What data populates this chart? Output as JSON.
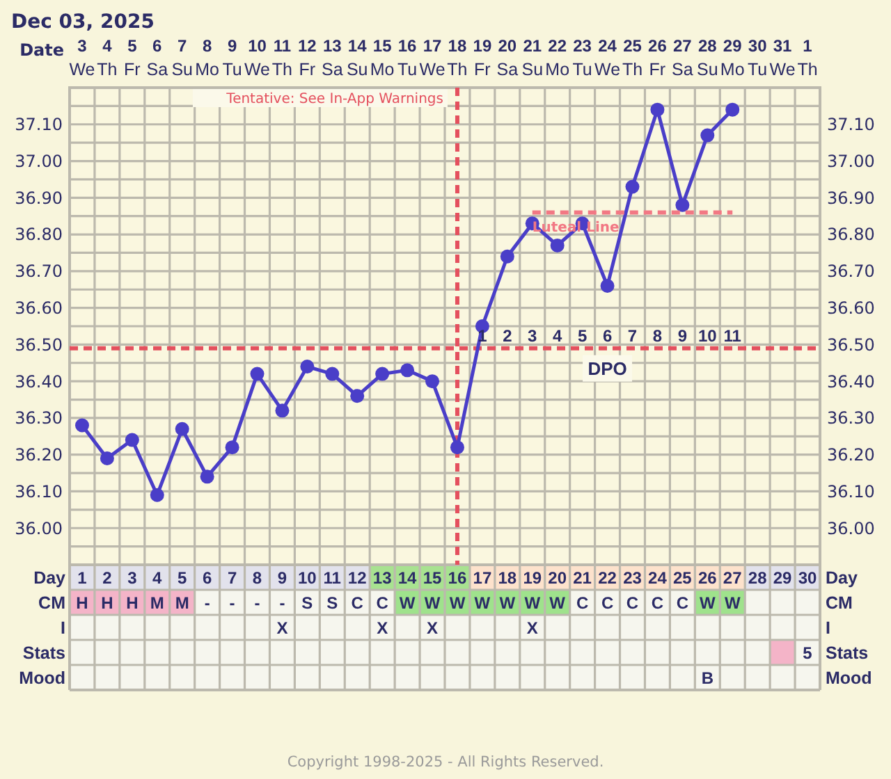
{
  "chart_data": [
    {
      "type": "line",
      "title": "Dec 03, 2025",
      "xlabel": "Date",
      "x2label": "Day",
      "categories": [
        "3\nWe",
        "4\nTh",
        "5\nFr",
        "6\nSa",
        "7\nSu",
        "8\nMo",
        "9\nTu",
        "10\nWe",
        "11\nTh",
        "12\nFr",
        "13\nSa",
        "14\nSu",
        "15\nMo",
        "16\nTu",
        "17\nWe",
        "18\nTh",
        "19\nFr",
        "20\nSa",
        "21\nSu",
        "22\nMo",
        "23\nTu",
        "24\nWe",
        "25\nTh",
        "26\nFr",
        "27\nSa",
        "28\nSu",
        "29\nMo",
        "30\nTu",
        "31\nWe",
        "1\nTh"
      ],
      "x2lim": [
        0.5,
        30.5
      ],
      "x2ticks": [
        1,
        2,
        3,
        4,
        5,
        6,
        7,
        8,
        9,
        10,
        11,
        12,
        13,
        14,
        15,
        16,
        17,
        18,
        19,
        20,
        21,
        22,
        23,
        24,
        25,
        26,
        27,
        28,
        29,
        30
      ],
      "ylim": [
        35.9,
        37.2
      ],
      "yticks": [
        {
          "value": 35.95,
          "label": null
        },
        {
          "value": 36,
          "label": "36.00"
        },
        {
          "value": 36.05,
          "label": null
        },
        {
          "value": 36.1,
          "label": "36.10"
        },
        {
          "value": 36.15,
          "label": null
        },
        {
          "value": 36.2,
          "label": "36.20"
        },
        {
          "value": 36.25,
          "label": null
        },
        {
          "value": 36.3,
          "label": "36.30"
        },
        {
          "value": 36.35,
          "label": null
        },
        {
          "value": 36.4,
          "label": "36.40"
        },
        {
          "value": 36.45,
          "label": null
        },
        {
          "value": 36.5,
          "label": "36.50"
        },
        {
          "value": 36.55,
          "label": null
        },
        {
          "value": 36.6,
          "label": "36.60"
        },
        {
          "value": 36.65,
          "label": null
        },
        {
          "value": 36.7,
          "label": "36.70"
        },
        {
          "value": 36.75,
          "label": null
        },
        {
          "value": 36.8,
          "label": "36.80"
        },
        {
          "value": 36.85,
          "label": null
        },
        {
          "value": 36.9,
          "label": "36.90"
        },
        {
          "value": 36.95,
          "label": null
        },
        {
          "value": 37,
          "label": "37.00"
        },
        {
          "value": 37.05,
          "label": null
        },
        {
          "value": 37.1,
          "label": "37.10"
        },
        {
          "value": 37.15,
          "label": null
        }
      ],
      "y2lim": [
        35.9,
        37.2
      ],
      "y2ticks": [
        {
          "value": 36,
          "label": "36.00"
        },
        {
          "value": 36.1,
          "label": "36.10"
        },
        {
          "value": 36.2,
          "label": "36.20"
        },
        {
          "value": 36.3,
          "label": "36.30"
        },
        {
          "value": 36.4,
          "label": "36.40"
        },
        {
          "value": 36.5,
          "label": "36.50"
        },
        {
          "value": 36.6,
          "label": "36.60"
        },
        {
          "value": 36.7,
          "label": "36.70"
        },
        {
          "value": 36.8,
          "label": "36.80"
        },
        {
          "value": 36.9,
          "label": "36.90"
        },
        {
          "value": 37,
          "label": "37.00"
        },
        {
          "value": 37.1,
          "label": "37.10"
        }
      ],
      "grid": true,
      "marker": "circle",
      "series": [
        {
          "color": "#4a3ec8",
          "values": [
            36.28,
            36.19,
            36.24,
            36.09,
            36.27,
            36.14,
            36.22,
            36.42,
            36.32,
            36.44,
            36.42,
            36.36,
            36.42,
            36.43,
            36.4,
            36.22,
            36.55,
            36.74,
            36.83,
            36.77,
            36.83,
            36.66,
            36.93,
            37.14,
            36.88,
            37.07,
            37.14,
            null,
            null,
            null
          ]
        },
        {
          "name": "Luteal Line",
          "type": "line",
          "color": "#f27884",
          "line_style": "dashed",
          "marker": "none",
          "values": [
            null,
            null,
            null,
            null,
            null,
            null,
            null,
            null,
            null,
            null,
            null,
            null,
            null,
            null,
            null,
            null,
            null,
            null,
            36.86,
            36.86,
            36.86,
            36.86,
            36.86,
            36.86,
            36.86,
            36.86,
            36.86,
            null,
            null,
            null
          ]
        }
      ],
      "ref_lines": [
        {
          "axis": "x",
          "value": "18\nTh",
          "label": "Tentative: See In-App Warnings",
          "color": "#e4505e",
          "line_style": "dashed"
        },
        {
          "axis": "y",
          "value": 36.49,
          "label": "DPO",
          "color": "#e4505e",
          "line_style": "dashed"
        }
      ],
      "annotations": [
        {
          "text": "1",
          "x": "19\nFr",
          "y": 36.49
        },
        {
          "text": "2",
          "x": "20\nSa",
          "y": 36.49
        },
        {
          "text": "3",
          "x": "21\nSu",
          "y": 36.49
        },
        {
          "text": "4",
          "x": "22\nMo",
          "y": 36.49
        },
        {
          "text": "5",
          "x": "23\nTu",
          "y": 36.49
        },
        {
          "text": "6",
          "x": "24\nWe",
          "y": 36.49
        },
        {
          "text": "7",
          "x": "25\nTh",
          "y": 36.49
        },
        {
          "text": "8",
          "x": "26\nFr",
          "y": 36.49
        },
        {
          "text": "9",
          "x": "27\nSa",
          "y": 36.49
        },
        {
          "text": "10",
          "x": "28\nSu",
          "y": 36.49
        },
        {
          "text": "11",
          "x": "29\nMo",
          "y": 36.49
        }
      ]
    },
    {
      "type": "other",
      "y_categories": [
        "CM",
        "I",
        "Stats",
        "Mood"
      ],
      "y2_categories": [
        "CM",
        "I",
        "Stats",
        "Mood"
      ],
      "cell_labels": [
        [
          "H",
          "H",
          "H",
          "M",
          "M",
          "-",
          "-",
          "-",
          "-",
          "S",
          "S",
          "C",
          "C",
          "W",
          "W",
          "W",
          "W",
          "W",
          "W",
          "W",
          "C",
          "C",
          "C",
          "C",
          "C",
          "W",
          "W",
          null,
          null,
          null
        ],
        [
          null,
          null,
          null,
          null,
          null,
          null,
          null,
          null,
          "X",
          null,
          null,
          null,
          "X",
          null,
          "X",
          null,
          null,
          null,
          "X",
          null,
          null,
          null,
          null,
          null,
          null,
          null,
          null,
          null,
          null,
          null
        ],
        [
          null,
          null,
          null,
          null,
          null,
          null,
          null,
          null,
          null,
          null,
          null,
          null,
          null,
          null,
          null,
          null,
          null,
          null,
          null,
          null,
          null,
          null,
          null,
          null,
          null,
          null,
          null,
          null,
          null,
          "5"
        ],
        [
          null,
          null,
          null,
          null,
          null,
          null,
          null,
          null,
          null,
          null,
          null,
          null,
          null,
          null,
          null,
          null,
          null,
          null,
          null,
          null,
          null,
          null,
          null,
          null,
          null,
          "B",
          null,
          null,
          null,
          null
        ]
      ],
      "colors": [
        [
          "#e2e2ec",
          "#e2e2ec",
          "#e2e2ec",
          "#e2e2ec",
          "#e2e2ec",
          "#e2e2ec",
          "#e2e2ec",
          "#e2e2ec",
          "#e2e2ec",
          "#e2e2ec",
          "#e2e2ec",
          "#e2e2ec",
          "#a8e290",
          "#a8e290",
          "#a8e290",
          "#a8e290",
          "#fde2cc",
          "#fde2cc",
          "#fde2cc",
          "#fde2cc",
          "#fde2cc",
          "#fde2cc",
          "#fde2cc",
          "#fde2cc",
          "#fde2cc",
          "#fde2cc",
          "#fde2cc",
          "#e2e2ec",
          "#e2e2ec",
          "#e2e2ec"
        ],
        [
          "#f4b4c8",
          "#f4b4c8",
          "#f4b4c8",
          "#f4b4c8",
          "#f4b4c8",
          null,
          null,
          null,
          null,
          null,
          null,
          null,
          null,
          "#9fe28c",
          "#9fe28c",
          "#9fe28c",
          "#9fe28c",
          "#9fe28c",
          "#9fe28c",
          "#9fe28c",
          null,
          null,
          null,
          null,
          null,
          "#9fe28c",
          "#9fe28c",
          null,
          null,
          null
        ],
        [
          null,
          null,
          null,
          null,
          null,
          null,
          null,
          null,
          null,
          null,
          null,
          null,
          null,
          null,
          null,
          null,
          null,
          null,
          null,
          null,
          null,
          null,
          null,
          null,
          null,
          null,
          null,
          null,
          null,
          null
        ],
        [
          null,
          null,
          null,
          null,
          null,
          null,
          null,
          null,
          null,
          null,
          null,
          null,
          null,
          null,
          null,
          null,
          null,
          null,
          null,
          null,
          null,
          null,
          null,
          null,
          null,
          null,
          null,
          null,
          "#f4b4c8",
          null
        ],
        [
          null,
          null,
          null,
          null,
          null,
          null,
          null,
          null,
          null,
          null,
          null,
          null,
          null,
          null,
          null,
          null,
          null,
          null,
          null,
          null,
          null,
          null,
          null,
          null,
          null,
          null,
          null,
          null,
          null,
          null
        ]
      ],
      "annotations": [
        "Copyright 1998-2025 - All Rights Reserved."
      ]
    }
  ]
}
